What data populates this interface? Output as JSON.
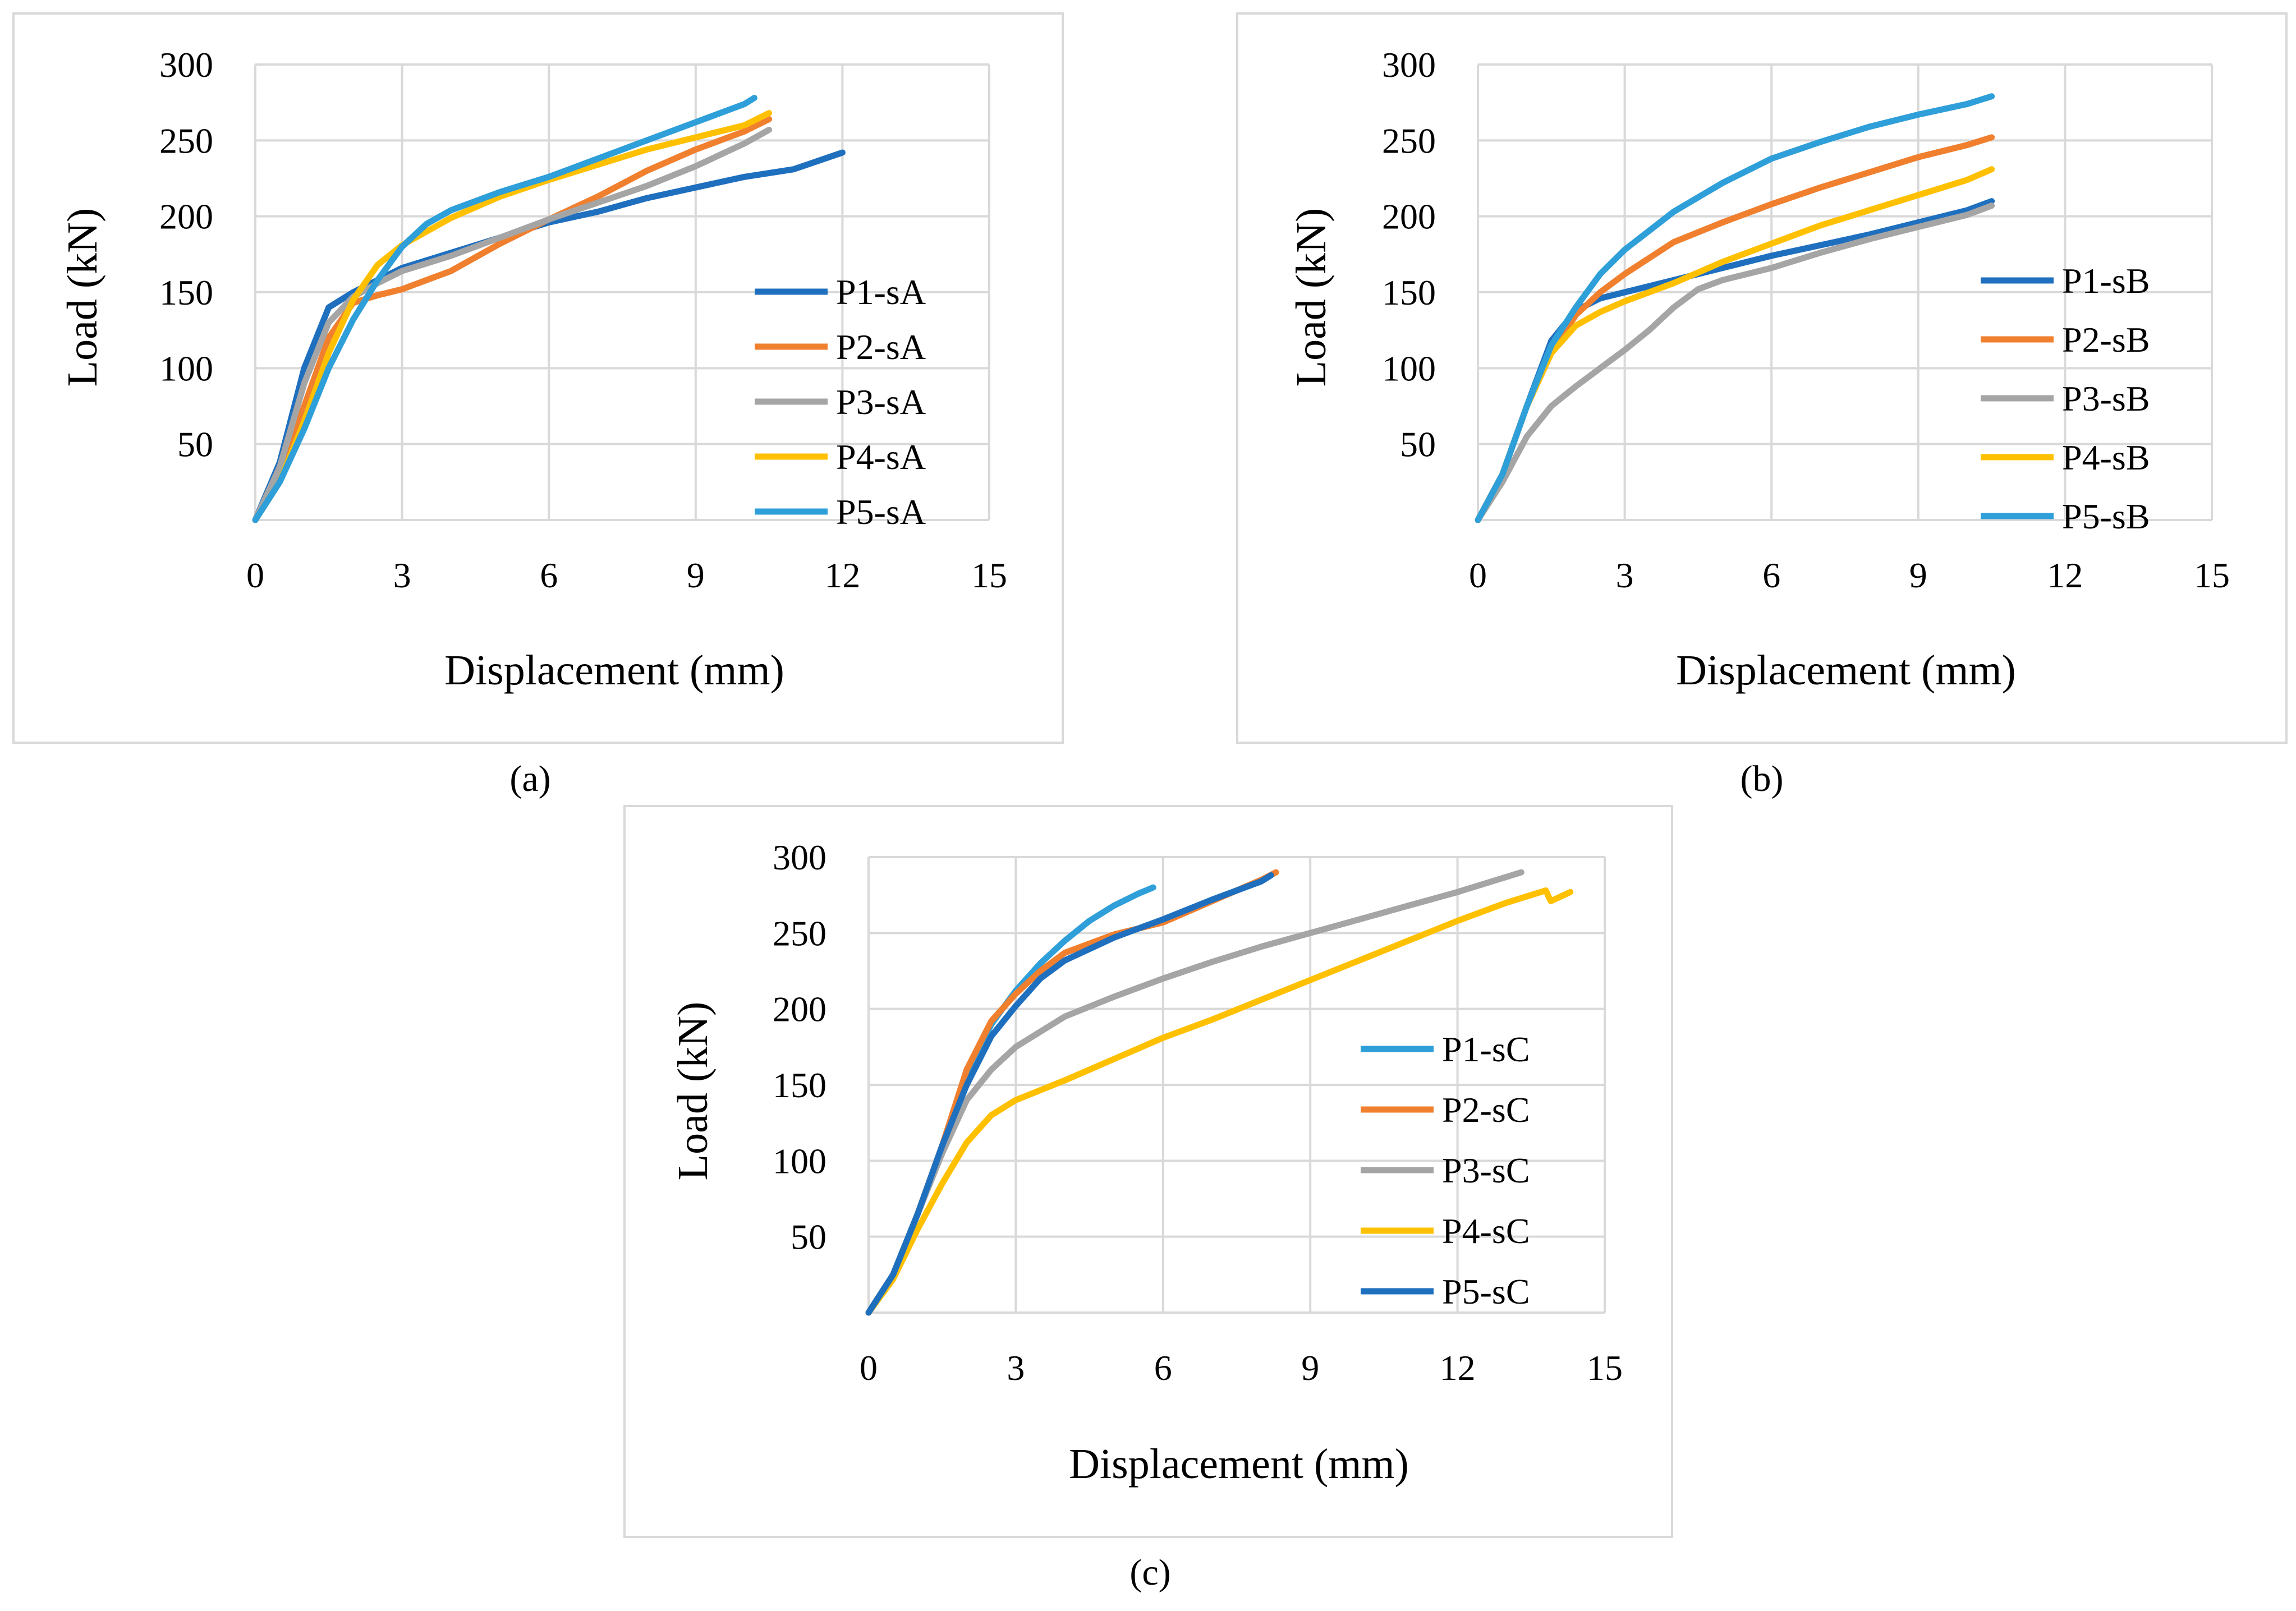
{
  "figure_captions": [
    "(a)",
    "(b)",
    "(c)"
  ],
  "chart_data": [
    {
      "type": "line",
      "caption_letter": "a",
      "xlabel": "Displacement (mm)",
      "ylabel": "Load (kN)",
      "xlim": [
        0,
        15
      ],
      "ylim": [
        0,
        300
      ],
      "xticks": [
        0,
        3,
        6,
        9,
        12,
        15
      ],
      "yticks": [
        50,
        100,
        150,
        200,
        250,
        300
      ],
      "x_tick_labels": [
        "0",
        "3",
        "6",
        "9",
        "12",
        "15"
      ],
      "y_tick_labels": [
        "50",
        "100",
        "150",
        "200",
        "250",
        "300"
      ],
      "grid": true,
      "legend_position": "right",
      "series": [
        {
          "name": "P1-sA",
          "color": "#1f6fbf",
          "points": [
            [
              0,
              0
            ],
            [
              0.5,
              38
            ],
            [
              1.0,
              100
            ],
            [
              1.5,
              140
            ],
            [
              2.0,
              150
            ],
            [
              2.5,
              158
            ],
            [
              3.0,
              166
            ],
            [
              4.0,
              176
            ],
            [
              5.0,
              186
            ],
            [
              6.0,
              196
            ],
            [
              7.0,
              203
            ],
            [
              8.0,
              212
            ],
            [
              9.0,
              219
            ],
            [
              10.0,
              226
            ],
            [
              11.0,
              231
            ],
            [
              12.0,
              242
            ]
          ]
        },
        {
          "name": "P2-sA",
          "color": "#f07f2e",
          "points": [
            [
              0,
              0
            ],
            [
              0.5,
              30
            ],
            [
              1.0,
              75
            ],
            [
              1.5,
              120
            ],
            [
              2.0,
              143
            ],
            [
              2.5,
              148
            ],
            [
              3.0,
              152
            ],
            [
              4.0,
              164
            ],
            [
              5.0,
              182
            ],
            [
              6.0,
              198
            ],
            [
              7.0,
              213
            ],
            [
              8.0,
              230
            ],
            [
              9.0,
              244
            ],
            [
              10.0,
              256
            ],
            [
              10.5,
              264
            ]
          ]
        },
        {
          "name": "P3-sA",
          "color": "#a5a5a5",
          "points": [
            [
              0,
              0
            ],
            [
              0.5,
              35
            ],
            [
              1.0,
              90
            ],
            [
              1.5,
              130
            ],
            [
              2.0,
              147
            ],
            [
              2.5,
              156
            ],
            [
              3.0,
              164
            ],
            [
              4.0,
              174
            ],
            [
              5.0,
              186
            ],
            [
              6.0,
              198
            ],
            [
              7.0,
              209
            ],
            [
              8.0,
              220
            ],
            [
              9.0,
              233
            ],
            [
              10.0,
              248
            ],
            [
              10.5,
              257
            ]
          ]
        },
        {
          "name": "P4-sA",
          "color": "#ffc000",
          "points": [
            [
              0,
              0
            ],
            [
              0.5,
              25
            ],
            [
              1.0,
              65
            ],
            [
              1.5,
              110
            ],
            [
              2.0,
              145
            ],
            [
              2.5,
              168
            ],
            [
              3.0,
              181
            ],
            [
              4.0,
              199
            ],
            [
              5.0,
              213
            ],
            [
              6.0,
              224
            ],
            [
              7.0,
              234
            ],
            [
              8.0,
              244
            ],
            [
              9.0,
              252
            ],
            [
              10.0,
              260
            ],
            [
              10.5,
              268
            ]
          ]
        },
        {
          "name": "P5-sA",
          "color": "#2e9fd9",
          "points": [
            [
              0,
              0
            ],
            [
              0.5,
              25
            ],
            [
              1.0,
              60
            ],
            [
              1.5,
              100
            ],
            [
              2.0,
              132
            ],
            [
              2.5,
              158
            ],
            [
              3.0,
              180
            ],
            [
              3.5,
              195
            ],
            [
              4.0,
              204
            ],
            [
              5.0,
              216
            ],
            [
              6.0,
              226
            ],
            [
              7.0,
              238
            ],
            [
              8.0,
              250
            ],
            [
              9.0,
              262
            ],
            [
              10.0,
              274
            ],
            [
              10.2,
              278
            ]
          ]
        }
      ]
    },
    {
      "type": "line",
      "caption_letter": "b",
      "xlabel": "Displacement (mm)",
      "ylabel": "Load (kN)",
      "xlim": [
        0,
        15
      ],
      "ylim": [
        0,
        300
      ],
      "xticks": [
        0,
        3,
        6,
        9,
        12,
        15
      ],
      "yticks": [
        50,
        100,
        150,
        200,
        250,
        300
      ],
      "x_tick_labels": [
        "0",
        "3",
        "6",
        "9",
        "12",
        "15"
      ],
      "y_tick_labels": [
        "50",
        "100",
        "150",
        "200",
        "250",
        "300"
      ],
      "grid": true,
      "legend_position": "right",
      "series": [
        {
          "name": "P1-sB",
          "color": "#1f6fbf",
          "points": [
            [
              0,
              0
            ],
            [
              0.5,
              30
            ],
            [
              1.0,
              75
            ],
            [
              1.5,
              118
            ],
            [
              2.0,
              138
            ],
            [
              2.5,
              146
            ],
            [
              3.0,
              150
            ],
            [
              4.0,
              158
            ],
            [
              5.0,
              166
            ],
            [
              6.0,
              174
            ],
            [
              7.0,
              181
            ],
            [
              8.0,
              188
            ],
            [
              9.0,
              196
            ],
            [
              10.0,
              204
            ],
            [
              10.5,
              210
            ]
          ]
        },
        {
          "name": "P2-sB",
          "color": "#f07f2e",
          "points": [
            [
              0,
              0
            ],
            [
              0.5,
              30
            ],
            [
              1.0,
              75
            ],
            [
              1.5,
              110
            ],
            [
              2.0,
              135
            ],
            [
              2.5,
              150
            ],
            [
              3.0,
              162
            ],
            [
              4.0,
              183
            ],
            [
              5.0,
              196
            ],
            [
              6.0,
              208
            ],
            [
              7.0,
              219
            ],
            [
              8.0,
              229
            ],
            [
              9.0,
              239
            ],
            [
              10.0,
              247
            ],
            [
              10.5,
              252
            ]
          ]
        },
        {
          "name": "P3-sB",
          "color": "#a5a5a5",
          "points": [
            [
              0,
              0
            ],
            [
              0.5,
              25
            ],
            [
              1.0,
              55
            ],
            [
              1.5,
              75
            ],
            [
              2.0,
              88
            ],
            [
              2.5,
              100
            ],
            [
              3.0,
              112
            ],
            [
              3.5,
              125
            ],
            [
              4.0,
              140
            ],
            [
              4.5,
              152
            ],
            [
              5.0,
              158
            ],
            [
              6.0,
              166
            ],
            [
              7.0,
              176
            ],
            [
              8.0,
              185
            ],
            [
              9.0,
              193
            ],
            [
              10.0,
              201
            ],
            [
              10.5,
              207
            ]
          ]
        },
        {
          "name": "P4-sB",
          "color": "#ffc000",
          "points": [
            [
              0,
              0
            ],
            [
              0.5,
              30
            ],
            [
              1.0,
              75
            ],
            [
              1.5,
              110
            ],
            [
              2.0,
              128
            ],
            [
              2.5,
              137
            ],
            [
              3.0,
              144
            ],
            [
              4.0,
              156
            ],
            [
              5.0,
              170
            ],
            [
              6.0,
              182
            ],
            [
              7.0,
              194
            ],
            [
              8.0,
              204
            ],
            [
              9.0,
              214
            ],
            [
              10.0,
              224
            ],
            [
              10.5,
              231
            ]
          ]
        },
        {
          "name": "P5-sB",
          "color": "#2e9fd9",
          "points": [
            [
              0,
              0
            ],
            [
              0.5,
              30
            ],
            [
              1.0,
              75
            ],
            [
              1.5,
              115
            ],
            [
              2.0,
              140
            ],
            [
              2.5,
              162
            ],
            [
              3.0,
              178
            ],
            [
              4.0,
              203
            ],
            [
              5.0,
              222
            ],
            [
              6.0,
              238
            ],
            [
              7.0,
              249
            ],
            [
              8.0,
              259
            ],
            [
              9.0,
              267
            ],
            [
              10.0,
              274
            ],
            [
              10.5,
              279
            ]
          ]
        }
      ]
    },
    {
      "type": "line",
      "caption_letter": "c",
      "xlabel": "Displacement (mm)",
      "ylabel": "Load (kN)",
      "xlim": [
        0,
        15
      ],
      "ylim": [
        0,
        300
      ],
      "xticks": [
        0,
        3,
        6,
        9,
        12,
        15
      ],
      "yticks": [
        50,
        100,
        150,
        200,
        250,
        300
      ],
      "x_tick_labels": [
        "0",
        "3",
        "6",
        "9",
        "12",
        "15"
      ],
      "y_tick_labels": [
        "50",
        "100",
        "150",
        "200",
        "250",
        "300"
      ],
      "grid": true,
      "legend_position": "right",
      "series": [
        {
          "name": "P1-sC",
          "color": "#2e9fd9",
          "points": [
            [
              0,
              0
            ],
            [
              0.5,
              25
            ],
            [
              1.0,
              65
            ],
            [
              1.5,
              110
            ],
            [
              2.0,
              155
            ],
            [
              2.5,
              190
            ],
            [
              3.0,
              212
            ],
            [
              3.5,
              230
            ],
            [
              4.0,
              245
            ],
            [
              4.5,
              258
            ],
            [
              5.0,
              268
            ],
            [
              5.5,
              276
            ],
            [
              5.8,
              280
            ]
          ]
        },
        {
          "name": "P2-sC",
          "color": "#f07f2e",
          "points": [
            [
              0,
              0
            ],
            [
              0.5,
              25
            ],
            [
              1.0,
              65
            ],
            [
              1.5,
              110
            ],
            [
              2.0,
              160
            ],
            [
              2.5,
              192
            ],
            [
              3.0,
              210
            ],
            [
              3.5,
              225
            ],
            [
              4.0,
              237
            ],
            [
              5.0,
              249
            ],
            [
              6.0,
              257
            ],
            [
              7.0,
              271
            ],
            [
              8.0,
              285
            ],
            [
              8.3,
              290
            ]
          ]
        },
        {
          "name": "P3-sC",
          "color": "#a5a5a5",
          "points": [
            [
              0,
              0
            ],
            [
              0.5,
              25
            ],
            [
              1.0,
              65
            ],
            [
              1.5,
              105
            ],
            [
              2.0,
              140
            ],
            [
              2.5,
              160
            ],
            [
              3.0,
              175
            ],
            [
              4.0,
              195
            ],
            [
              5.0,
              208
            ],
            [
              6.0,
              220
            ],
            [
              7.0,
              231
            ],
            [
              8.0,
              241
            ],
            [
              9.0,
              250
            ],
            [
              10.0,
              259
            ],
            [
              11.0,
              268
            ],
            [
              12.0,
              277
            ],
            [
              13.0,
              287
            ],
            [
              13.3,
              290
            ]
          ]
        },
        {
          "name": "P4-sC",
          "color": "#ffc000",
          "points": [
            [
              0,
              0
            ],
            [
              0.5,
              22
            ],
            [
              1.0,
              55
            ],
            [
              1.5,
              85
            ],
            [
              2.0,
              112
            ],
            [
              2.5,
              130
            ],
            [
              3.0,
              140
            ],
            [
              4.0,
              153
            ],
            [
              5.0,
              167
            ],
            [
              6.0,
              181
            ],
            [
              7.0,
              193
            ],
            [
              8.0,
              206
            ],
            [
              9.0,
              219
            ],
            [
              10.0,
              232
            ],
            [
              11.0,
              245
            ],
            [
              12.0,
              258
            ],
            [
              13.0,
              270
            ],
            [
              13.8,
              278
            ],
            [
              13.9,
              271
            ],
            [
              14.3,
              277
            ]
          ]
        },
        {
          "name": "P5-sC",
          "color": "#1f6fbf",
          "points": [
            [
              0,
              0
            ],
            [
              0.5,
              25
            ],
            [
              1.0,
              65
            ],
            [
              1.5,
              110
            ],
            [
              2.0,
              150
            ],
            [
              2.5,
              182
            ],
            [
              3.0,
              202
            ],
            [
              3.5,
              220
            ],
            [
              4.0,
              232
            ],
            [
              5.0,
              247
            ],
            [
              6.0,
              259
            ],
            [
              7.0,
              272
            ],
            [
              8.0,
              284
            ],
            [
              8.2,
              288
            ]
          ]
        }
      ]
    }
  ]
}
